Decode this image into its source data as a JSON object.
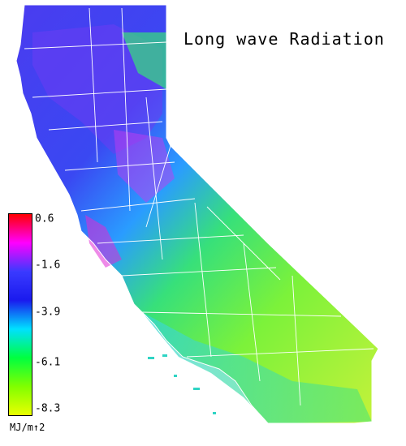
{
  "title": "Long wave Radiation",
  "legend": {
    "unit": "MJ/m↑2",
    "ticks": [
      "0.6",
      "-1.6",
      "-3.9",
      "-6.1",
      "-8.3"
    ],
    "values": [
      0.6,
      -1.6,
      -3.9,
      -6.1,
      -8.3
    ],
    "colors": [
      "#ff0000",
      "#ff00ff",
      "#3a3aff",
      "#1a1aee",
      "#00e0ff",
      "#00ff40",
      "#80ff00",
      "#eaff00"
    ]
  },
  "map": {
    "region": "California",
    "palette": {
      "north": "#4a3cf0",
      "north_accent": "#b833e8",
      "coast": "#2a8cff",
      "central": "#39e07a",
      "desert": "#b8f03a",
      "south_coast": "#38d6d6",
      "border_lines": "#ffffff"
    }
  }
}
